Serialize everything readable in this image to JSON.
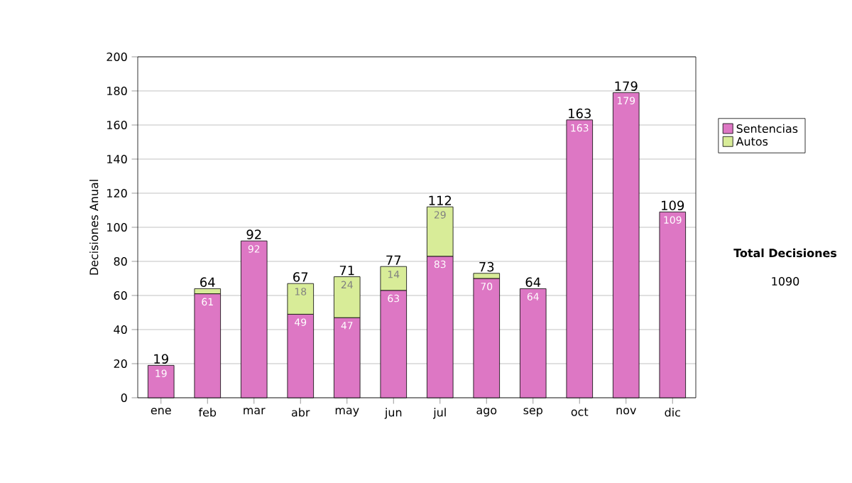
{
  "chart_data": {
    "type": "bar",
    "stacked": true,
    "ylabel": "Decisiones Anual",
    "categories": [
      "ene",
      "feb",
      "mar",
      "abr",
      "may",
      "jun",
      "jul",
      "ago",
      "sep",
      "oct",
      "nov",
      "dic"
    ],
    "series": [
      {
        "name": "Sentencias",
        "color": "#dd77c4",
        "values": [
          19,
          61,
          92,
          49,
          47,
          63,
          83,
          70,
          64,
          163,
          179,
          109
        ],
        "value_labels": [
          "19",
          "61",
          "92",
          "49",
          "47",
          "63",
          "83",
          "70",
          "64",
          "163",
          "179",
          "109"
        ]
      },
      {
        "name": "Autos",
        "color": "#d8ec98",
        "values": [
          null,
          3,
          null,
          18,
          24,
          14,
          29,
          3,
          null,
          null,
          null,
          null
        ],
        "value_labels": [
          null,
          null,
          null,
          "18",
          "24",
          "14",
          "29",
          null,
          null,
          null,
          null,
          null
        ]
      }
    ],
    "totals": [
      "19",
      "64",
      "92",
      "67",
      "71",
      "77",
      "112",
      "73",
      "64",
      "163",
      "179",
      "109"
    ],
    "ylim": [
      0,
      200
    ],
    "yticks": [
      0,
      20,
      40,
      60,
      80,
      100,
      120,
      140,
      160,
      180,
      200
    ],
    "grid": "y",
    "legend": "right",
    "annotations": [
      "Total Decisiones",
      "1090"
    ]
  }
}
